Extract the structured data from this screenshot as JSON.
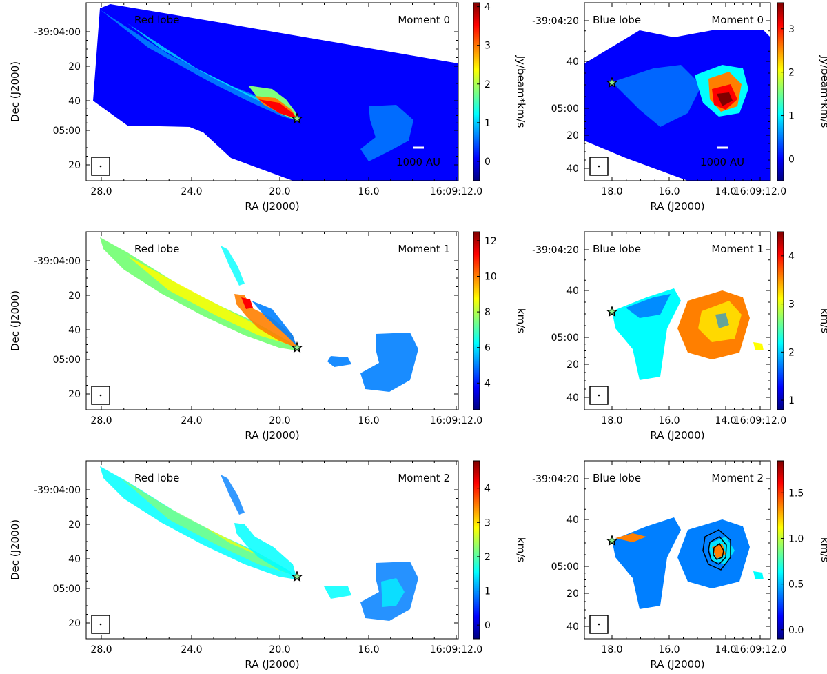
{
  "colors": {
    "jet": [
      "#00007f",
      "#0000ff",
      "#007fff",
      "#00ffff",
      "#7fff7f",
      "#ffff00",
      "#ff7f00",
      "#ff0000",
      "#7f0000"
    ],
    "frame": "#000000",
    "annotation_bg": "#0000ff",
    "star_fill": "#90ee90"
  },
  "labels": {
    "beam_note": "1000 AU"
  },
  "chart_data": [
    {
      "id": "red-mom0",
      "type": "heatmap",
      "lobe": "Red lobe",
      "moment": "Moment 0",
      "xlabel": "RA (J2000)",
      "ylabel": "Dec (J2000)",
      "xticks": [
        "28.0",
        "24.0",
        "20.0",
        "16.0",
        "16:09:12.0"
      ],
      "yticks": [
        "-39:04:00",
        "20",
        "40",
        "05:00",
        "20"
      ],
      "colorbar": {
        "label": "Jy/beam*km/s",
        "range": [
          -0.5,
          4.1
        ],
        "ticks": [
          "0",
          "1",
          "2",
          "3",
          "4"
        ],
        "tick_values": [
          0,
          1,
          2,
          3,
          4
        ]
      },
      "scale_bar": "1000 AU",
      "star": "driving source"
    },
    {
      "id": "blue-mom0",
      "type": "heatmap",
      "lobe": "Blue lobe",
      "moment": "Moment 0",
      "xlabel": "RA (J2000)",
      "ylabel": "",
      "xticks": [
        "18.0",
        "16.0",
        "14.0",
        "16:09:12.0"
      ],
      "yticks": [
        "-39:04:20",
        "40",
        "05:00",
        "20",
        "40"
      ],
      "colorbar": {
        "label": "Jy/beam*km/s",
        "range": [
          -0.5,
          3.6
        ],
        "ticks": [
          "0",
          "1",
          "2",
          "3"
        ],
        "tick_values": [
          0,
          1,
          2,
          3
        ]
      },
      "scale_bar": "1000 AU",
      "star": "driving source"
    },
    {
      "id": "red-mom1",
      "type": "heatmap",
      "lobe": "Red lobe",
      "moment": "Moment 1",
      "xlabel": "RA (J2000)",
      "ylabel": "Dec (J2000)",
      "xticks": [
        "28.0",
        "24.0",
        "20.0",
        "16.0",
        "16:09:12.0"
      ],
      "yticks": [
        "-39:04:00",
        "20",
        "40",
        "05:00",
        "20"
      ],
      "colorbar": {
        "label": "km/s",
        "range": [
          2.5,
          12.5
        ],
        "ticks": [
          "4",
          "6",
          "8",
          "10",
          "12"
        ],
        "tick_values": [
          4,
          6,
          8,
          10,
          12
        ]
      },
      "star": "driving source"
    },
    {
      "id": "blue-mom1",
      "type": "heatmap",
      "lobe": "Blue lobe",
      "moment": "Moment 1",
      "xlabel": "RA (J2000)",
      "ylabel": "",
      "xticks": [
        "18.0",
        "16.0",
        "14.0",
        "16:09:12.0"
      ],
      "yticks": [
        "-39:04:20",
        "40",
        "05:00",
        "20",
        "40"
      ],
      "colorbar": {
        "label": "km/s",
        "range": [
          0.8,
          4.5
        ],
        "ticks": [
          "1",
          "2",
          "3",
          "4"
        ],
        "tick_values": [
          1,
          2,
          3,
          4
        ]
      },
      "star": "driving source"
    },
    {
      "id": "red-mom2",
      "type": "heatmap",
      "lobe": "Red lobe",
      "moment": "Moment 2",
      "xlabel": "RA (J2000)",
      "ylabel": "Dec (J2000)",
      "xticks": [
        "28.0",
        "24.0",
        "20.0",
        "16.0",
        "16:09:12.0"
      ],
      "yticks": [
        "-39:04:00",
        "20",
        "40",
        "05:00",
        "20"
      ],
      "colorbar": {
        "label": "km/s",
        "range": [
          -0.4,
          4.8
        ],
        "ticks": [
          "0",
          "1",
          "2",
          "3",
          "4"
        ],
        "tick_values": [
          0,
          1,
          2,
          3,
          4
        ]
      },
      "star": "driving source"
    },
    {
      "id": "blue-mom2",
      "type": "heatmap",
      "lobe": "Blue lobe",
      "moment": "Moment 2",
      "xlabel": "RA (J2000)",
      "ylabel": "",
      "xticks": [
        "18.0",
        "16.0",
        "14.0",
        "16:09:12.0"
      ],
      "yticks": [
        "-39:04:20",
        "40",
        "05:00",
        "20",
        "40"
      ],
      "colorbar": {
        "label": "km/s",
        "range": [
          -0.1,
          1.85
        ],
        "ticks": [
          "0.0",
          "0.5",
          "1.0",
          "1.5"
        ],
        "tick_values": [
          0.0,
          0.5,
          1.0,
          1.5
        ]
      },
      "star": "driving source",
      "contours": 3
    }
  ]
}
